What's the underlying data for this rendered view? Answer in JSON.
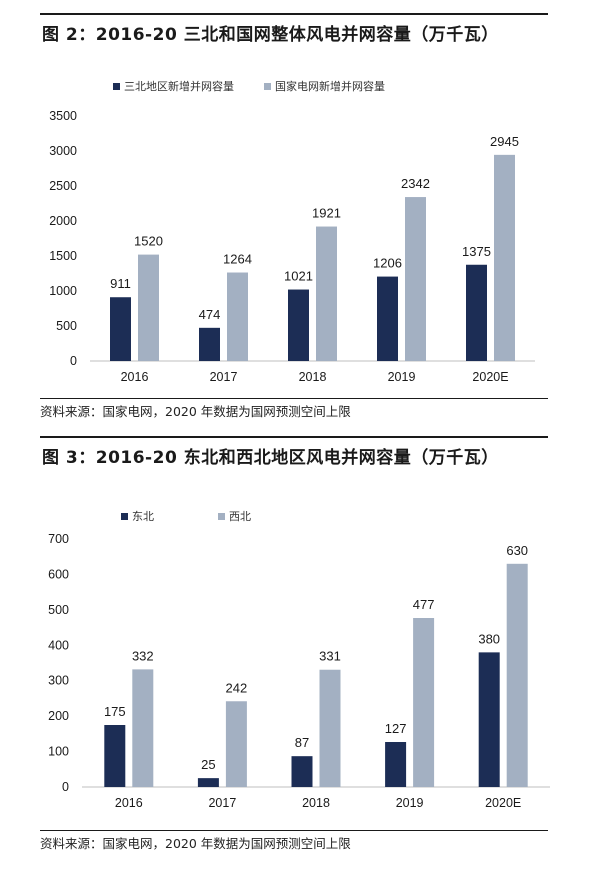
{
  "figures": [
    {
      "title": "图 2：2016-20 三北和国网整体风电并网容量（万千瓦）",
      "source": "资料来源：国家电网，2020 年数据为国网预测空间上限"
    },
    {
      "title": "图 3：2016-20 东北和西北地区风电并网容量（万千瓦）",
      "source": "资料来源：国家电网，2020 年数据为国网预测空间上限"
    }
  ],
  "chart_data": [
    {
      "type": "bar",
      "title": "图 2：2016-20 三北和国网整体风电并网容量（万千瓦）",
      "xlabel": "",
      "ylabel": "",
      "categories": [
        "2016",
        "2017",
        "2018",
        "2019",
        "2020E"
      ],
      "series": [
        {
          "name": "三北地区新增并网容量",
          "color": "#1c2d55",
          "values": [
            911,
            474,
            1021,
            1206,
            1375
          ]
        },
        {
          "name": "国家电网新增并网容量",
          "color": "#a3b0c2",
          "values": [
            1520,
            1264,
            1921,
            2342,
            2945
          ]
        }
      ],
      "ylim": [
        0,
        3500
      ],
      "yticks": [
        0,
        500,
        1000,
        1500,
        2000,
        2500,
        3000,
        3500
      ],
      "legend_position": "top-left",
      "grid": false
    },
    {
      "type": "bar",
      "title": "图 3：2016-20 东北和西北地区风电并网容量（万千瓦）",
      "xlabel": "",
      "ylabel": "",
      "categories": [
        "2016",
        "2017",
        "2018",
        "2019",
        "2020E"
      ],
      "series": [
        {
          "name": "东北",
          "color": "#1c2d55",
          "values": [
            175,
            25,
            87,
            127,
            380
          ]
        },
        {
          "name": "西北",
          "color": "#a3b0c2",
          "values": [
            332,
            242,
            331,
            477,
            630
          ]
        }
      ],
      "ylim": [
        0,
        700
      ],
      "yticks": [
        0,
        100,
        200,
        300,
        400,
        500,
        600,
        700
      ],
      "legend_position": "top-left",
      "grid": false
    }
  ]
}
